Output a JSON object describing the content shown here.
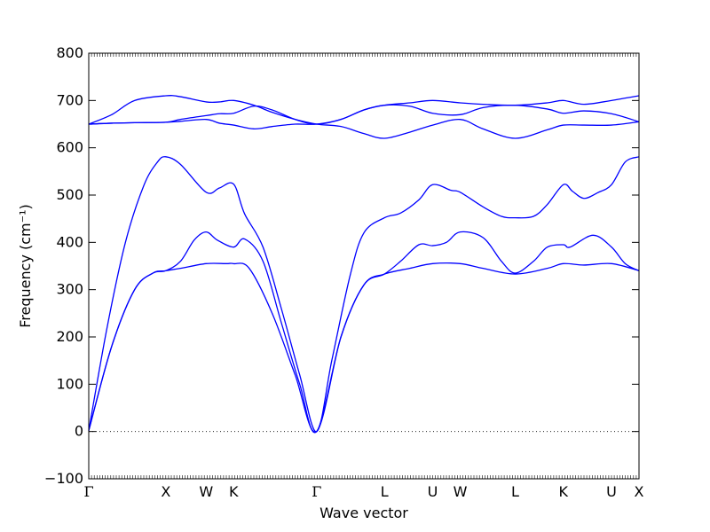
{
  "chart_data": {
    "type": "line",
    "title": "",
    "xlabel": "Wave vector",
    "ylabel": "Frequency (cm⁻¹)",
    "ylim": [
      -100,
      800
    ],
    "xlim": [
      0,
      12
    ],
    "grid": false,
    "legend": "none",
    "colors": {
      "band": "#0000ff",
      "zero_line": "#000000"
    },
    "yticks": [
      -100,
      0,
      100,
      200,
      300,
      400,
      500,
      600,
      700,
      800
    ],
    "xticks": [
      {
        "label": "Γ",
        "x": 0
      },
      {
        "label": "X",
        "x": 1.68
      },
      {
        "label": "W",
        "x": 2.56
      },
      {
        "label": "K",
        "x": 3.16
      },
      {
        "label": "Γ",
        "x": 4.97
      },
      {
        "label": "L",
        "x": 6.45
      },
      {
        "label": "U",
        "x": 7.5
      },
      {
        "label": "W",
        "x": 8.1
      },
      {
        "label": "L",
        "x": 9.3
      },
      {
        "label": "K",
        "x": 10.35
      },
      {
        "label": "U",
        "x": 11.4
      },
      {
        "label": "X",
        "x": 12
      }
    ],
    "series": [
      {
        "x": [
          0,
          0.5,
          1.0,
          1.4,
          1.68,
          2.0,
          2.56,
          3.0,
          3.16,
          3.5,
          4.0,
          4.5,
          4.97,
          5.5,
          6.0,
          6.45,
          7.0,
          7.5,
          8.1,
          8.6,
          9.3,
          10.0,
          10.35,
          10.8,
          11.4,
          12.0
        ],
        "y": [
          2,
          180,
          300,
          335,
          340,
          345,
          355,
          355,
          355,
          345,
          250,
          120,
          0,
          200,
          310,
          333,
          345,
          355,
          355,
          345,
          333,
          345,
          355,
          352,
          355,
          340
        ]
      },
      {
        "x": [
          0,
          0.5,
          1.0,
          1.4,
          1.68,
          2.0,
          2.3,
          2.56,
          2.8,
          3.16,
          3.4,
          3.8,
          4.2,
          4.6,
          4.97,
          5.5,
          6.0,
          6.45,
          6.8,
          7.2,
          7.5,
          7.8,
          8.1,
          8.6,
          9.0,
          9.3,
          9.7,
          10.0,
          10.35,
          10.5,
          11.0,
          11.4,
          11.7,
          12.0
        ],
        "y": [
          2,
          180,
          300,
          335,
          340,
          360,
          405,
          422,
          405,
          390,
          407,
          360,
          230,
          100,
          0,
          200,
          310,
          333,
          360,
          395,
          393,
          400,
          422,
          410,
          360,
          335,
          360,
          390,
          395,
          390,
          415,
          390,
          355,
          340
        ]
      },
      {
        "x": [
          0,
          0.4,
          0.8,
          1.2,
          1.5,
          1.68,
          2.0,
          2.56,
          2.85,
          3.16,
          3.4,
          3.8,
          4.2,
          4.6,
          4.97,
          5.3,
          5.7,
          6.0,
          6.45,
          6.8,
          7.2,
          7.5,
          7.9,
          8.1,
          8.6,
          9.0,
          9.3,
          9.7,
          10.0,
          10.35,
          10.55,
          10.8,
          11.1,
          11.4,
          11.7,
          12.0
        ],
        "y": [
          2,
          220,
          400,
          520,
          570,
          581,
          565,
          506,
          515,
          523,
          460,
          390,
          260,
          120,
          0,
          150,
          330,
          420,
          452,
          462,
          490,
          522,
          510,
          506,
          475,
          455,
          452,
          455,
          480,
          522,
          508,
          493,
          505,
          522,
          570,
          581
        ]
      },
      {
        "x": [
          0,
          0.5,
          1.0,
          1.68,
          2.0,
          2.56,
          2.85,
          3.16,
          3.6,
          4.0,
          4.5,
          4.97,
          5.5,
          6.0,
          6.45,
          7.0,
          7.5,
          8.1,
          8.6,
          9.3,
          10.0,
          10.35,
          10.8,
          11.4,
          12.0
        ],
        "y": [
          650,
          652,
          653,
          654,
          656,
          660,
          652,
          648,
          640,
          645,
          650,
          650,
          660,
          680,
          690,
          688,
          673,
          670,
          685,
          690,
          682,
          673,
          678,
          672,
          655
        ]
      },
      {
        "x": [
          0,
          0.5,
          1.0,
          1.68,
          2.0,
          2.56,
          2.85,
          3.16,
          3.6,
          4.0,
          4.5,
          4.97,
          5.5,
          6.0,
          6.45,
          7.0,
          7.5,
          8.1,
          8.6,
          9.3,
          10.0,
          10.35,
          10.8,
          11.4,
          12.0
        ],
        "y": [
          650,
          652,
          653,
          654,
          660,
          668,
          672,
          673,
          688,
          680,
          660,
          650,
          660,
          680,
          690,
          695,
          700,
          695,
          692,
          690,
          695,
          700,
          692,
          700,
          710
        ]
      },
      {
        "x": [
          0,
          0.5,
          1.0,
          1.68,
          2.0,
          2.56,
          2.85,
          3.16,
          3.6,
          4.0,
          4.5,
          4.97,
          5.5,
          6.0,
          6.45,
          7.0,
          7.5,
          8.1,
          8.6,
          9.3,
          10.0,
          10.35,
          10.8,
          11.4,
          12.0
        ],
        "y": [
          650,
          670,
          700,
          710,
          708,
          697,
          697,
          700,
          690,
          675,
          660,
          650,
          645,
          630,
          620,
          633,
          648,
          660,
          640,
          620,
          638,
          648,
          648,
          648,
          655
        ]
      }
    ]
  }
}
